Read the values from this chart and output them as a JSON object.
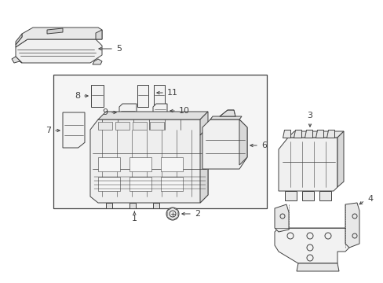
{
  "bg_color": "#ffffff",
  "lc": "#404040",
  "lw": 0.7,
  "fig_w": 4.89,
  "fig_h": 3.6,
  "dpi": 100
}
